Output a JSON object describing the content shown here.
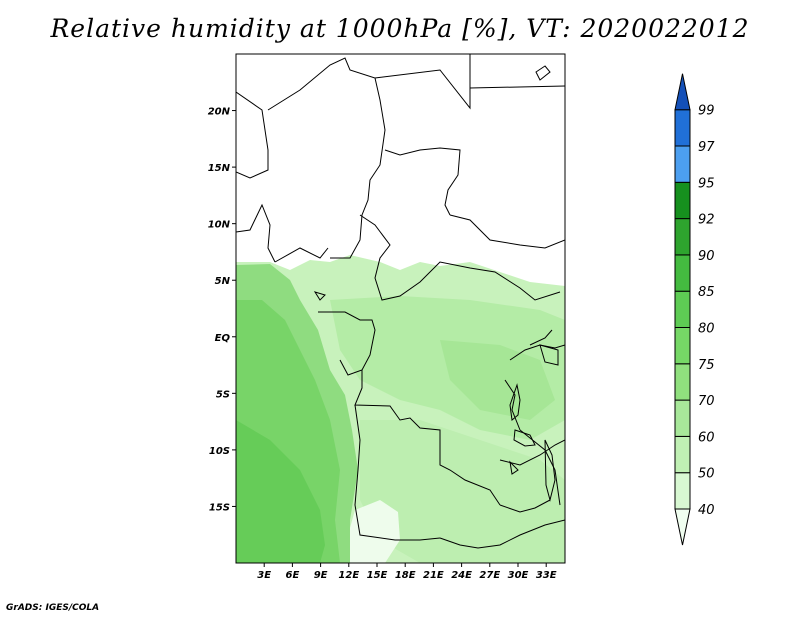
{
  "title": "Relative humidity at 1000hPa [%], VT: 2020022012",
  "footer": "GrADS: IGES/COLA",
  "map": {
    "lat_labels": [
      "20N",
      "15N",
      "10N",
      "5N",
      "EQ",
      "5S",
      "10S",
      "15S"
    ],
    "lon_labels": [
      "3E",
      "6E",
      "9E",
      "12E",
      "15E",
      "18E",
      "21E",
      "24E",
      "27E",
      "30E",
      "33E"
    ]
  },
  "colorbar": {
    "levels": [
      "40",
      "50",
      "60",
      "70",
      "75",
      "80",
      "85",
      "90",
      "92",
      "95",
      "97",
      "99"
    ],
    "colors": [
      "#f0fef0",
      "#d8f8d2",
      "#c0f0b4",
      "#a8e89a",
      "#90e07e",
      "#76d866",
      "#5ecc54",
      "#44bb40",
      "#2ea42e",
      "#16901e",
      "#4c9ff0",
      "#2070d8",
      "#1450b8"
    ]
  },
  "chart_data": {
    "type": "heatmap",
    "title": "Relative humidity at 1000hPa [%], VT: 2020022012",
    "xlabel": "",
    "ylabel": "",
    "x_ticks": [
      "3E",
      "6E",
      "9E",
      "12E",
      "15E",
      "18E",
      "21E",
      "24E",
      "27E",
      "30E",
      "33E"
    ],
    "y_ticks": [
      "20N",
      "15N",
      "10N",
      "5N",
      "EQ",
      "5S",
      "10S",
      "15S"
    ],
    "xlim": [
      0,
      35
    ],
    "ylim": [
      -20,
      25
    ],
    "color_levels": [
      40,
      50,
      60,
      70,
      75,
      80,
      85,
      90,
      92,
      95,
      97,
      99
    ]
  }
}
